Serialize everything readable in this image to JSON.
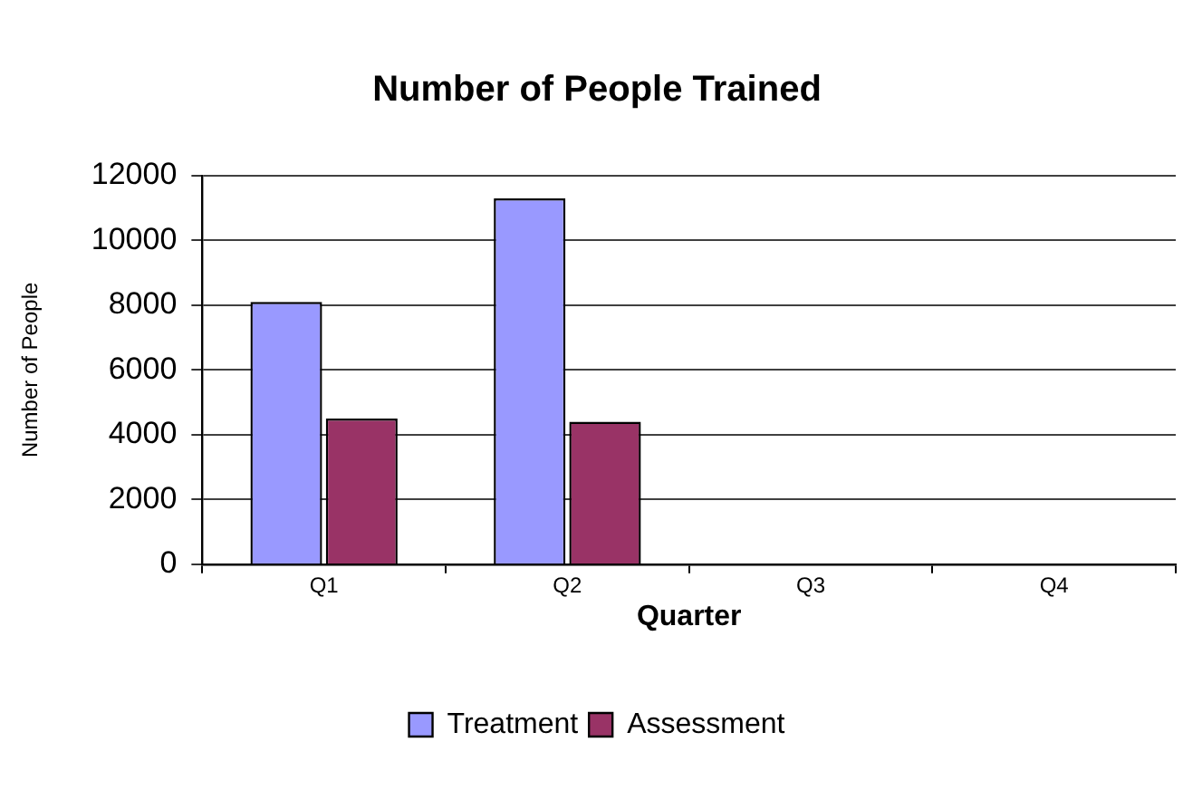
{
  "chart_data": {
    "type": "bar",
    "title": "Number of People Trained",
    "xlabel": "Quarter",
    "ylabel": "Number of People",
    "categories": [
      "Q1",
      "Q2",
      "Q3",
      "Q4"
    ],
    "series": [
      {
        "name": "Treatment",
        "color": "#9999ff",
        "values": [
          8100,
          11300,
          null,
          null
        ]
      },
      {
        "name": "Assessment",
        "color": "#993366",
        "values": [
          4500,
          4400,
          null,
          null
        ]
      }
    ],
    "ylim": [
      0,
      12000
    ],
    "yticks": [
      0,
      2000,
      4000,
      6000,
      8000,
      10000,
      12000
    ],
    "grid": "y",
    "legend": "bottom"
  }
}
